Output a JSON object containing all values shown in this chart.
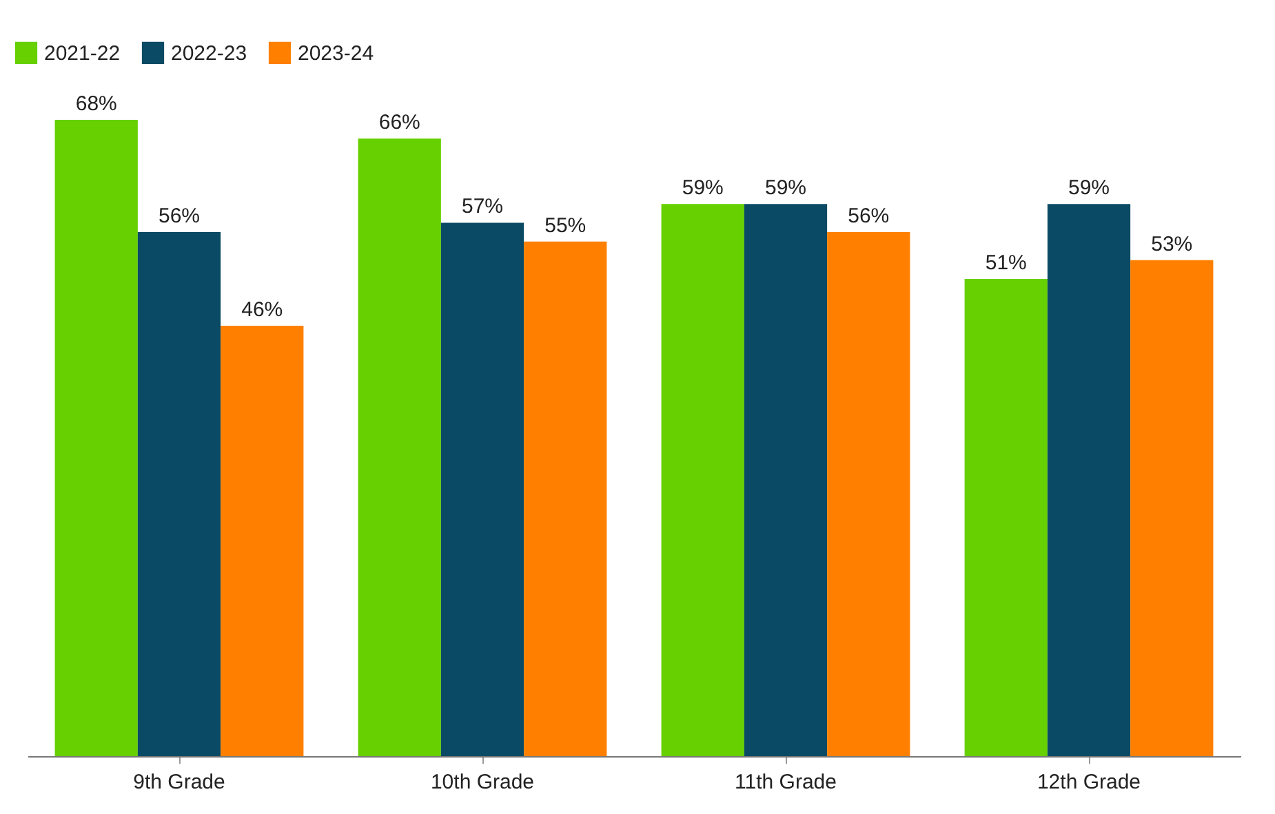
{
  "chart_data": {
    "type": "bar",
    "categories": [
      "9th Grade",
      "10th Grade",
      "11th Grade",
      "12th Grade"
    ],
    "legend": "top left",
    "grid": false,
    "series": [
      {
        "name": "2021-22",
        "color": "#66d000",
        "values": [
          68,
          66,
          59,
          51
        ],
        "value_labels": [
          "68%",
          "66%",
          "59%",
          "51%"
        ]
      },
      {
        "name": "2022-23",
        "color": "#0b4a64",
        "values": [
          56,
          57,
          59,
          59
        ],
        "value_labels": [
          "56%",
          "57%",
          "59%",
          "59%"
        ]
      },
      {
        "name": "2023-24",
        "color": "#ff8000",
        "values": [
          46,
          55,
          56,
          53
        ],
        "value_labels": [
          "46%",
          "55%",
          "56%",
          "53%"
        ]
      }
    ]
  }
}
